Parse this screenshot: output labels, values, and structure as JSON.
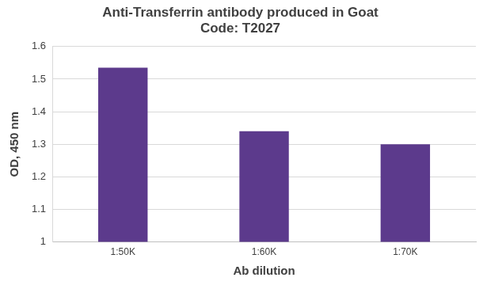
{
  "chart_data": {
    "type": "bar",
    "title": "Anti-Transferrin antibody produced in Goat",
    "subtitle": "Code: T2027",
    "x_label": "Ab dilution",
    "y_label": "OD, 450 nm",
    "categories": [
      "1:50K",
      "1:60K",
      "1:70K"
    ],
    "values": [
      1.535,
      1.34,
      1.3
    ],
    "color": "#5c3a8c",
    "ylim": [
      1,
      1.6
    ],
    "yticks": [
      1,
      1.1,
      1.2,
      1.3,
      1.4,
      1.5,
      1.6
    ],
    "grid": true
  }
}
